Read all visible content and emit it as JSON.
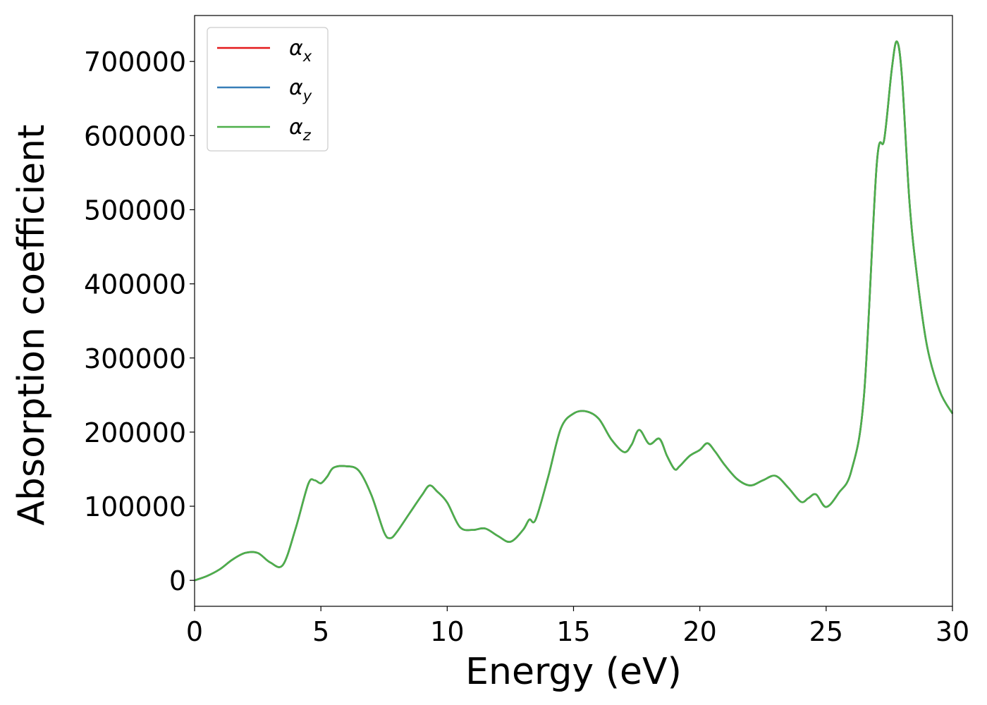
{
  "chart_data": {
    "type": "line",
    "xlabel": "Energy (eV)",
    "ylabel": "Absorption coefficient",
    "xlim": [
      0,
      30
    ],
    "ylim": [
      -35000,
      762000
    ],
    "x_ticks": [
      0,
      5,
      10,
      15,
      20,
      25,
      30
    ],
    "y_ticks": [
      0,
      100000,
      200000,
      300000,
      400000,
      500000,
      600000,
      700000
    ],
    "grid": false,
    "legend_position": "top-left",
    "x": [
      0,
      0.5,
      1.0,
      1.5,
      2.0,
      2.5,
      3.0,
      3.5,
      4.0,
      4.5,
      4.75,
      5.0,
      5.25,
      5.5,
      6.0,
      6.5,
      7.0,
      7.5,
      7.75,
      8.0,
      8.5,
      9.0,
      9.3,
      9.6,
      10.0,
      10.5,
      11.0,
      11.5,
      12.0,
      12.5,
      13.0,
      13.25,
      13.5,
      14.0,
      14.5,
      15.0,
      15.5,
      16.0,
      16.5,
      17.0,
      17.3,
      17.6,
      18.0,
      18.4,
      18.7,
      19.0,
      19.2,
      19.6,
      20.0,
      20.3,
      20.6,
      21.0,
      21.5,
      22.0,
      22.5,
      23.0,
      23.5,
      24.0,
      24.3,
      24.6,
      25.0,
      25.5,
      26.0,
      26.5,
      27.0,
      27.3,
      27.6,
      27.8,
      28.0,
      28.3,
      28.6,
      29.0,
      29.5,
      30.0
    ],
    "series": [
      {
        "name": "αx",
        "color": "#e41a1c",
        "values": [
          0,
          6000,
          15000,
          28000,
          37000,
          37000,
          24000,
          21000,
          70000,
          130000,
          135000,
          131000,
          140000,
          152000,
          154000,
          148000,
          115000,
          65000,
          57000,
          65000,
          90000,
          115000,
          128000,
          120000,
          105000,
          72000,
          68000,
          70000,
          60000,
          52000,
          68000,
          82000,
          82000,
          140000,
          205000,
          225000,
          228000,
          218000,
          190000,
          173000,
          183000,
          203000,
          184000,
          191000,
          168000,
          150000,
          154000,
          168000,
          176000,
          185000,
          174000,
          155000,
          136000,
          128000,
          135000,
          141000,
          125000,
          106000,
          111000,
          116000,
          99000,
          118000,
          148000,
          250000,
          560000,
          595000,
          690000,
          727000,
          680000,
          510000,
          410000,
          315000,
          255000,
          225000
        ]
      },
      {
        "name": "αy",
        "color": "#377eb8",
        "values": [
          0,
          6000,
          15000,
          28000,
          37000,
          37000,
          24000,
          21000,
          70000,
          130000,
          135000,
          131000,
          140000,
          152000,
          154000,
          148000,
          115000,
          65000,
          57000,
          65000,
          90000,
          115000,
          128000,
          120000,
          105000,
          72000,
          68000,
          70000,
          60000,
          52000,
          68000,
          82000,
          82000,
          140000,
          205000,
          225000,
          228000,
          218000,
          190000,
          173000,
          183000,
          203000,
          184000,
          191000,
          168000,
          150000,
          154000,
          168000,
          176000,
          185000,
          174000,
          155000,
          136000,
          128000,
          135000,
          141000,
          125000,
          106000,
          111000,
          116000,
          99000,
          118000,
          148000,
          250000,
          560000,
          595000,
          690000,
          727000,
          680000,
          510000,
          410000,
          315000,
          255000,
          225000
        ]
      },
      {
        "name": "αz",
        "color": "#4daf4a",
        "values": [
          0,
          6000,
          15000,
          28000,
          37000,
          37000,
          24000,
          21000,
          70000,
          130000,
          135000,
          131000,
          140000,
          152000,
          154000,
          148000,
          115000,
          65000,
          57000,
          65000,
          90000,
          115000,
          128000,
          120000,
          105000,
          72000,
          68000,
          70000,
          60000,
          52000,
          68000,
          82000,
          82000,
          140000,
          205000,
          225000,
          228000,
          218000,
          190000,
          173000,
          183000,
          203000,
          184000,
          191000,
          168000,
          150000,
          154000,
          168000,
          176000,
          185000,
          174000,
          155000,
          136000,
          128000,
          135000,
          141000,
          125000,
          106000,
          111000,
          116000,
          99000,
          118000,
          148000,
          250000,
          560000,
          595000,
          690000,
          727000,
          680000,
          510000,
          410000,
          315000,
          255000,
          225000
        ]
      }
    ],
    "legend": [
      {
        "base": "α",
        "sub": "x"
      },
      {
        "base": "α",
        "sub": "y"
      },
      {
        "base": "α",
        "sub": "z"
      }
    ]
  }
}
